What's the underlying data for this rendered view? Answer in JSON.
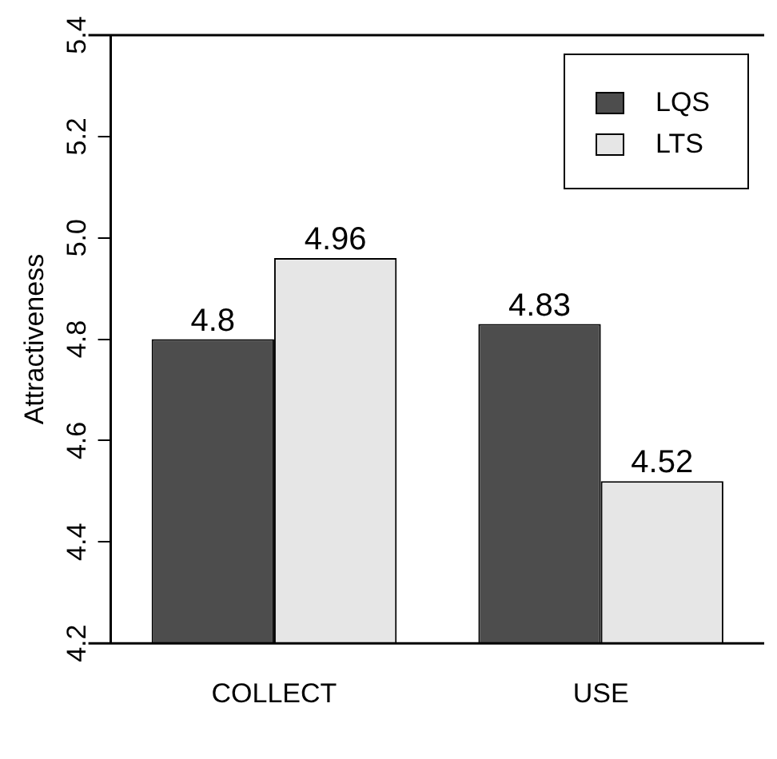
{
  "chart_data": {
    "type": "bar",
    "ylabel": "Attractiveness",
    "categories": [
      "COLLECT",
      "USE"
    ],
    "series": [
      {
        "name": "LQS",
        "color": "#4d4d4d",
        "values": [
          4.8,
          4.83
        ]
      },
      {
        "name": "LTS",
        "color": "#e6e6e6",
        "values": [
          4.96,
          4.52
        ]
      }
    ],
    "ylim": [
      4.2,
      5.4
    ],
    "yticks": [
      4.2,
      4.4,
      4.6,
      4.8,
      {
        "value": 5.0,
        "label": "5.0"
      },
      5.2,
      5.4
    ],
    "data_labels": true,
    "legend": "top right",
    "grid": false
  }
}
